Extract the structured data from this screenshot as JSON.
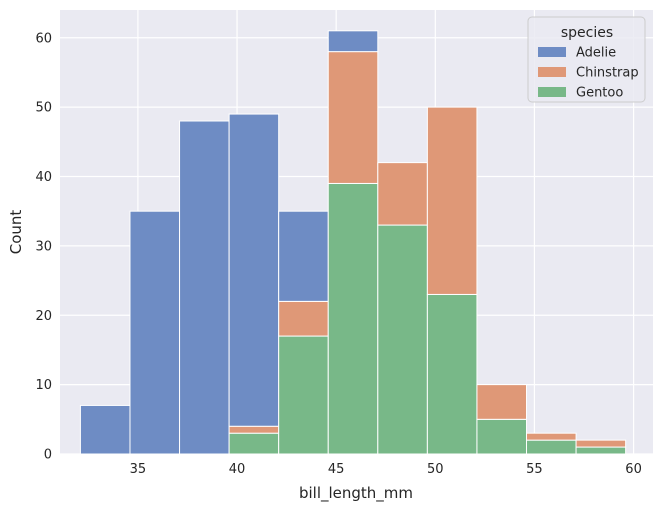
{
  "chart_data": {
    "type": "bar",
    "stacked": true,
    "xlabel": "bill_length_mm",
    "ylabel": "Count",
    "xlim": [
      31.07,
      60.98
    ],
    "ylim": [
      0,
      64
    ],
    "xticks": [
      35,
      40,
      45,
      50,
      55,
      60
    ],
    "yticks": [
      0,
      10,
      20,
      30,
      40,
      50,
      60
    ],
    "grid": true,
    "legend": {
      "title": "species",
      "position": "top-right"
    },
    "bin_edges": [
      32.1,
      34.6,
      37.1,
      39.6,
      42.1,
      44.6,
      47.1,
      49.6,
      52.1,
      54.6,
      57.1,
      59.6
    ],
    "stack_order": [
      "Gentoo",
      "Chinstrap",
      "Adelie"
    ],
    "series": [
      {
        "name": "Adelie",
        "color": "#6e8cc4",
        "values": [
          7,
          35,
          48,
          45,
          13,
          3,
          0,
          0,
          0,
          0,
          0
        ]
      },
      {
        "name": "Chinstrap",
        "color": "#df9877",
        "values": [
          0,
          0,
          0,
          1,
          5,
          19,
          9,
          27,
          5,
          1,
          1
        ]
      },
      {
        "name": "Gentoo",
        "color": "#78b888",
        "values": [
          0,
          0,
          0,
          3,
          17,
          39,
          33,
          23,
          5,
          2,
          1
        ]
      }
    ]
  },
  "colors": {
    "plot_background": "#eaeaf2",
    "grid": "#ffffff",
    "text": "#262626"
  }
}
